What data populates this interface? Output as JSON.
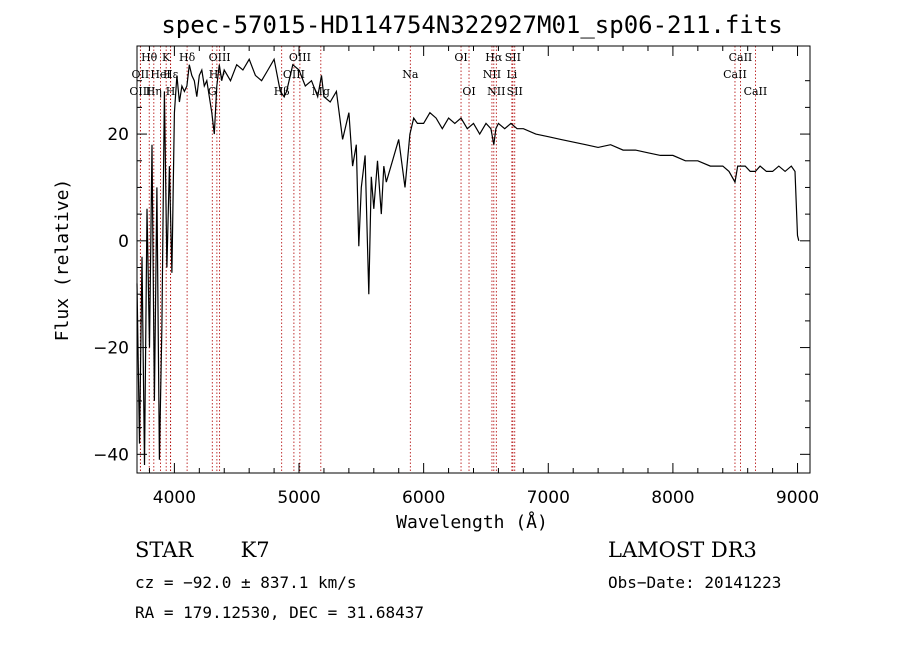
{
  "chart_data": {
    "type": "line",
    "title": "spec-57015-HD114754N322927M01_sp06-211.fits",
    "xlabel": "Wavelength (Å)",
    "ylabel": "Flux (relative)",
    "xlim": [
      3700,
      9100
    ],
    "ylim": [
      -43.5,
      36.5
    ],
    "xticks": [
      4000,
      5000,
      6000,
      7000,
      8000,
      9000
    ],
    "yticks": [
      -40,
      -20,
      0,
      20
    ],
    "grid": false,
    "series": [
      {
        "line_color": "#000000",
        "x": [
          3700,
          3720,
          3740,
          3760,
          3780,
          3800,
          3820,
          3840,
          3860,
          3880,
          3900,
          3920,
          3940,
          3960,
          3980,
          4000,
          4020,
          4040,
          4060,
          4080,
          4100,
          4120,
          4140,
          4160,
          4180,
          4200,
          4220,
          4240,
          4260,
          4280,
          4300,
          4320,
          4340,
          4360,
          4380,
          4400,
          4450,
          4500,
          4550,
          4600,
          4650,
          4700,
          4750,
          4800,
          4850,
          4880,
          4900,
          4950,
          5000,
          5050,
          5100,
          5150,
          5180,
          5200,
          5250,
          5300,
          5350,
          5400,
          5430,
          5460,
          5480,
          5500,
          5530,
          5560,
          5580,
          5600,
          5630,
          5660,
          5680,
          5700,
          5750,
          5800,
          5850,
          5890,
          5920,
          5950,
          6000,
          6050,
          6100,
          6150,
          6200,
          6250,
          6300,
          6350,
          6400,
          6450,
          6500,
          6540,
          6563,
          6580,
          6600,
          6650,
          6700,
          6750,
          6800,
          6900,
          7000,
          7100,
          7200,
          7300,
          7400,
          7500,
          7600,
          7700,
          7800,
          7900,
          8000,
          8100,
          8200,
          8300,
          8400,
          8450,
          8498,
          8520,
          8542,
          8580,
          8620,
          8662,
          8700,
          8750,
          8800,
          8850,
          8900,
          8950,
          8980,
          9000,
          9010
        ],
        "values": [
          -8,
          -38,
          -3,
          -42,
          6,
          -20,
          18,
          -30,
          10,
          -41,
          -16,
          28,
          -5,
          14,
          -6,
          24,
          31,
          26,
          29,
          28,
          29,
          33,
          31,
          30,
          27,
          31,
          32,
          29,
          30,
          27,
          24,
          20,
          29,
          33,
          30,
          32,
          30,
          33,
          32,
          34,
          31,
          30,
          32,
          34,
          28,
          27,
          28,
          33,
          32,
          29,
          30,
          27,
          31,
          27,
          26,
          28,
          19,
          24,
          14,
          18,
          -1,
          10,
          16,
          -10,
          12,
          6,
          15,
          5,
          14,
          11,
          15,
          19,
          10,
          20,
          23,
          22,
          22,
          24,
          23,
          21,
          23,
          22,
          23,
          21,
          22,
          20,
          22,
          21,
          18,
          21,
          22,
          21,
          22,
          21,
          21,
          20,
          19.5,
          19,
          18.5,
          18,
          17.5,
          18,
          17,
          17,
          16.5,
          16,
          16,
          15,
          15,
          14,
          14,
          13,
          11,
          14,
          14,
          14,
          13,
          13,
          14,
          13,
          13,
          14,
          13,
          14,
          13,
          1,
          0
        ]
      }
    ],
    "annotations": [
      {
        "label": "Hθ",
        "wavelength": 3798,
        "row": 1
      },
      {
        "label": "OII",
        "wavelength": 3727,
        "row": 2
      },
      {
        "label": "OIII",
        "wavelength": 3727,
        "row": 3
      },
      {
        "label": "HeI",
        "wavelength": 3889,
        "row": 2
      },
      {
        "label": "Hη",
        "wavelength": 3835,
        "row": 3
      },
      {
        "label": "K",
        "wavelength": 3934,
        "row": 1
      },
      {
        "label": "H",
        "wavelength": 3969,
        "row": 3
      },
      {
        "label": "Hδ",
        "wavelength": 4102,
        "row": 1
      },
      {
        "label": "Hε",
        "wavelength": 3970,
        "row": 2
      },
      {
        "label": "OIII",
        "wavelength": 4363,
        "row": 1
      },
      {
        "label": "Hγ",
        "wavelength": 4341,
        "row": 2
      },
      {
        "label": "G",
        "wavelength": 4304,
        "row": 3
      },
      {
        "label": "OIII",
        "wavelength": 5007,
        "row": 1
      },
      {
        "label": "OIII",
        "wavelength": 4959,
        "row": 2
      },
      {
        "label": "Hβ",
        "wavelength": 4861,
        "row": 3
      },
      {
        "label": "Mg",
        "wavelength": 5175,
        "row": 3
      },
      {
        "label": "Na",
        "wavelength": 5893,
        "row": 2
      },
      {
        "label": "OI",
        "wavelength": 6300,
        "row": 1
      },
      {
        "label": "OI",
        "wavelength": 6364,
        "row": 3
      },
      {
        "label": "Hα",
        "wavelength": 6563,
        "row": 1
      },
      {
        "label": "SII",
        "wavelength": 6716,
        "row": 1
      },
      {
        "label": "NII",
        "wavelength": 6548,
        "row": 2
      },
      {
        "label": "Li",
        "wavelength": 6708,
        "row": 2
      },
      {
        "label": "NII",
        "wavelength": 6583,
        "row": 3
      },
      {
        "label": "SII",
        "wavelength": 6731,
        "row": 3
      },
      {
        "label": "CaII",
        "wavelength": 8542,
        "row": 1
      },
      {
        "label": "CaII",
        "wavelength": 8498,
        "row": 2
      },
      {
        "label": "CaII",
        "wavelength": 8662,
        "row": 3
      }
    ]
  },
  "info": {
    "object_class": "STAR",
    "subclass": "K7",
    "survey": "LAMOST DR3",
    "cz": "cz = −92.0 ± 837.1 km/s",
    "obs_date": "Obs−Date: 20141223",
    "coords": "RA = 179.12530, DEC =  31.68437"
  },
  "colors": {
    "line_marker": "#b00000",
    "spectrum": "#000000"
  }
}
